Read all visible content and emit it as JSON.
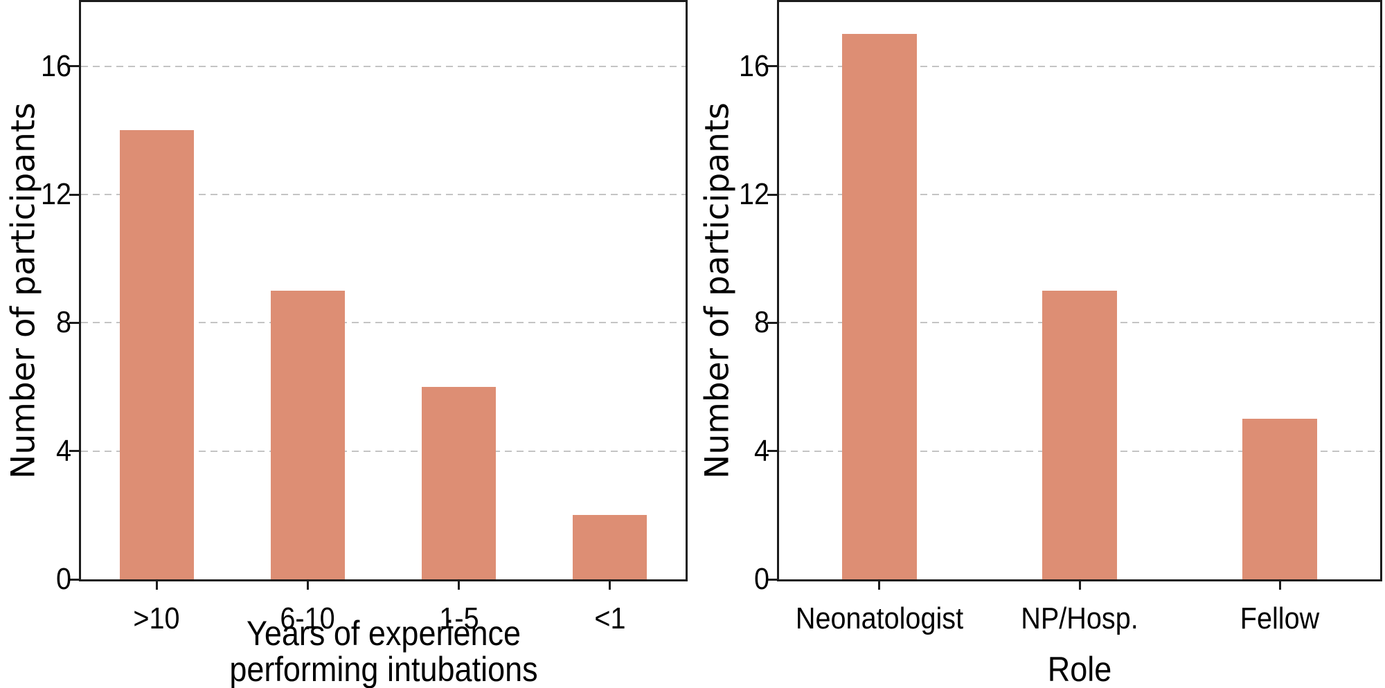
{
  "figure": {
    "background_color": "#ffffff",
    "bar_color": "#DD8E74",
    "grid_color": "#c4c4c4",
    "spine_color": "#1c1c1c",
    "text_color": "#000000"
  },
  "chart_data": [
    {
      "type": "bar",
      "panel": "left",
      "title": "",
      "categories": [
        ">10",
        "6-10",
        "1-5",
        "<1"
      ],
      "values": [
        14,
        9,
        6,
        2
      ],
      "xlabel": "Years of experience\nperforming intubations",
      "ylabel": "Number of participants",
      "yticks": [
        0,
        4,
        8,
        12,
        16
      ],
      "ylim": [
        0,
        18
      ],
      "grid": "horizontal-dashed",
      "legend": "none"
    },
    {
      "type": "bar",
      "panel": "right",
      "title": "",
      "categories": [
        "Neonatologist",
        "NP/Hosp.",
        "Fellow"
      ],
      "values": [
        17,
        9,
        5
      ],
      "xlabel": "Role",
      "ylabel": "Number of participants",
      "yticks": [
        0,
        4,
        8,
        12,
        16
      ],
      "ylim": [
        0,
        18
      ],
      "grid": "horizontal-dashed",
      "legend": "none"
    }
  ]
}
